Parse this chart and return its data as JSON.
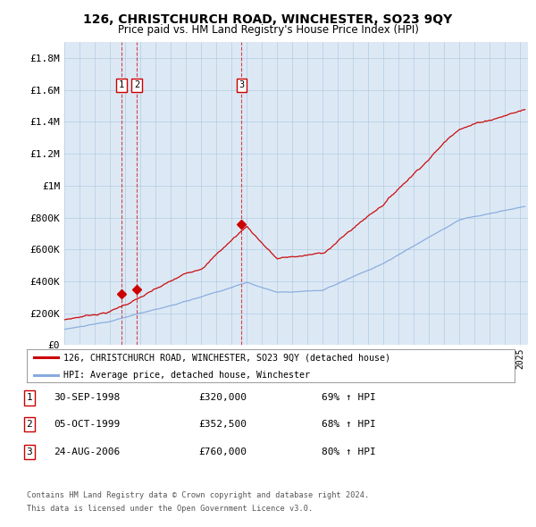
{
  "title": "126, CHRISTCHURCH ROAD, WINCHESTER, SO23 9QY",
  "subtitle": "Price paid vs. HM Land Registry's House Price Index (HPI)",
  "ylabel_ticks": [
    "£0",
    "£200K",
    "£400K",
    "£600K",
    "£800K",
    "£1M",
    "£1.2M",
    "£1.4M",
    "£1.6M",
    "£1.8M"
  ],
  "ytick_values": [
    0,
    200000,
    400000,
    600000,
    800000,
    1000000,
    1200000,
    1400000,
    1600000,
    1800000
  ],
  "ylim": [
    0,
    1900000
  ],
  "xlim_start": 1995.0,
  "xlim_end": 2025.5,
  "background_color": "#dce9f5",
  "plot_bg": "#dce9f5",
  "red_color": "#cc0000",
  "blue_color": "#88aadd",
  "sale_points": [
    {
      "year": 1998.75,
      "price": 320000,
      "label": "1"
    },
    {
      "year": 1999.76,
      "price": 352500,
      "label": "2"
    },
    {
      "year": 2006.65,
      "price": 760000,
      "label": "3"
    }
  ],
  "legend_entries": [
    "126, CHRISTCHURCH ROAD, WINCHESTER, SO23 9QY (detached house)",
    "HPI: Average price, detached house, Winchester"
  ],
  "table_rows": [
    {
      "num": "1",
      "date": "30-SEP-1998",
      "price": "£320,000",
      "change": "69% ↑ HPI"
    },
    {
      "num": "2",
      "date": "05-OCT-1999",
      "price": "£352,500",
      "change": "68% ↑ HPI"
    },
    {
      "num": "3",
      "date": "24-AUG-2006",
      "price": "£760,000",
      "change": "80% ↑ HPI"
    }
  ],
  "footnote1": "Contains HM Land Registry data © Crown copyright and database right 2024.",
  "footnote2": "This data is licensed under the Open Government Licence v3.0."
}
